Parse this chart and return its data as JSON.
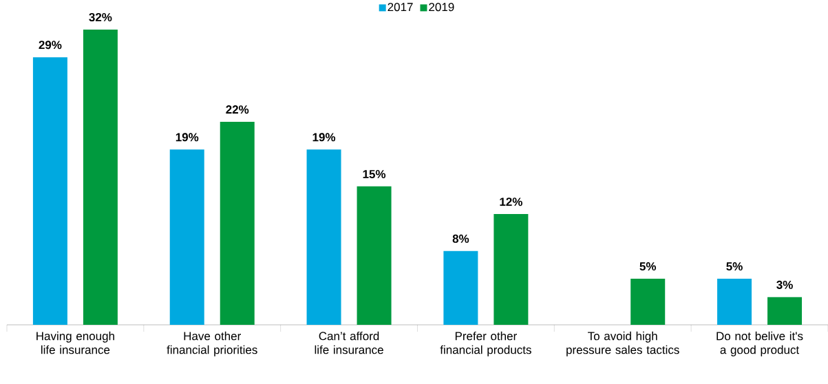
{
  "chart_data": {
    "type": "bar",
    "categories": [
      "Having enough life insurance",
      "Have other financial priorities",
      "Can’t afford life insurance",
      "Prefer other financial products",
      "To avoid high pressure sales tactics",
      "Do not belive it's a good product"
    ],
    "series": [
      {
        "name": "2017",
        "color": "#00a9e0",
        "values": [
          29,
          19,
          19,
          8,
          null,
          5
        ],
        "value_labels": [
          "29%",
          "19%",
          "19%",
          "8%",
          null,
          "5%"
        ]
      },
      {
        "name": "2019",
        "color": "#009a3e",
        "values": [
          32,
          22,
          15,
          12,
          5,
          3
        ],
        "value_labels": [
          "32%",
          "22%",
          "15%",
          "12%",
          "5%",
          "3%"
        ]
      }
    ],
    "legend": "top"
  }
}
